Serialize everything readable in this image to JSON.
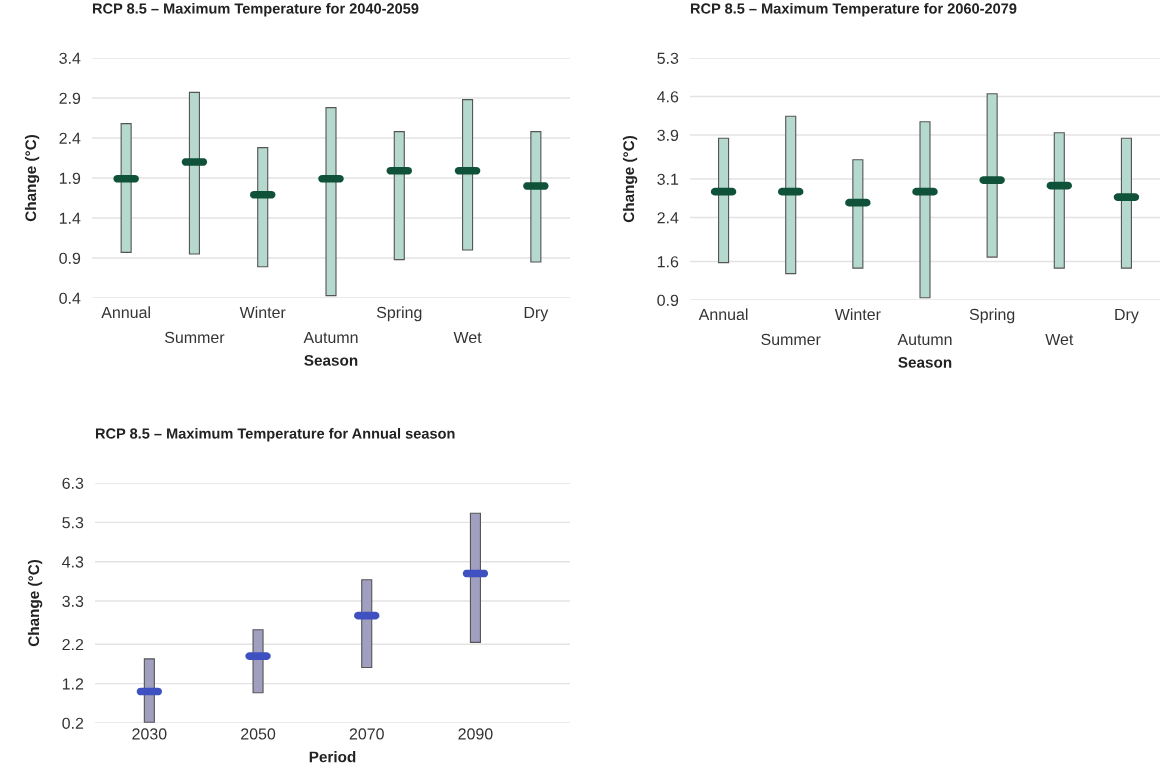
{
  "chart_data": [
    {
      "type": "bar",
      "title": "RCP 8.5 – Maximum Temperature for 2040-2059",
      "xlabel": "Season",
      "ylabel": "Change (°C)",
      "categories": [
        "Annual",
        "Summer",
        "Winter",
        "Autumn",
        "Spring",
        "Wet",
        "Dry"
      ],
      "ylim": [
        0.4,
        3.4
      ],
      "yticks": [
        0.4,
        0.9,
        1.4,
        1.9,
        2.4,
        2.9,
        3.4
      ],
      "grid": "y",
      "legend": false,
      "series": [
        {
          "color": "#b5d9cf",
          "base": [
            0.97,
            0.95,
            0.79,
            0.43,
            0.88,
            1.0,
            0.85
          ],
          "values": [
            1.61,
            2.02,
            1.49,
            2.35,
            1.6,
            1.88,
            1.63
          ]
        },
        {
          "type": "scatter",
          "color": "#0f5139",
          "values": [
            1.89,
            2.1,
            1.69,
            1.89,
            1.99,
            1.99,
            1.8
          ]
        }
      ]
    },
    {
      "type": "bar",
      "title": "RCP 8.5 – Maximum Temperature for 2060-2079",
      "xlabel": "Season",
      "ylabel": "Change (°C)",
      "categories": [
        "Annual",
        "Summer",
        "Winter",
        "Autumn",
        "Spring",
        "Wet",
        "Dry"
      ],
      "ylim": [
        0.9,
        5.3
      ],
      "yticks": [
        0.9,
        1.6,
        2.4,
        3.1,
        3.9,
        4.6,
        5.3
      ],
      "grid": "y",
      "legend": false,
      "series": [
        {
          "color": "#b5d9cf",
          "base": [
            1.58,
            1.38,
            1.48,
            0.94,
            1.68,
            1.48,
            1.48
          ],
          "values": [
            2.26,
            2.86,
            1.97,
            3.2,
            2.97,
            2.46,
            2.36
          ]
        },
        {
          "type": "scatter",
          "color": "#0f5139",
          "values": [
            2.87,
            2.87,
            2.67,
            2.87,
            3.08,
            2.98,
            2.77
          ]
        }
      ]
    },
    {
      "type": "bar",
      "title": "RCP 8.5 – Maximum Temperature for Annual season",
      "xlabel": "Period",
      "ylabel": "Change (°C)",
      "categories": [
        "2030",
        "2050",
        "2070",
        "2090"
      ],
      "ylim": [
        0.2,
        6.3
      ],
      "yticks": [
        0.2,
        1.2,
        2.2,
        3.3,
        4.3,
        5.3,
        6.3
      ],
      "grid": "y",
      "legend": false,
      "series": [
        {
          "color": "#a09fc0",
          "base": [
            0.22,
            0.97,
            1.61,
            2.25
          ],
          "values": [
            1.61,
            1.6,
            2.23,
            3.28
          ]
        },
        {
          "type": "scatter",
          "color": "#3f51c0",
          "values": [
            1.0,
            1.9,
            2.93,
            4.0
          ]
        }
      ]
    }
  ]
}
